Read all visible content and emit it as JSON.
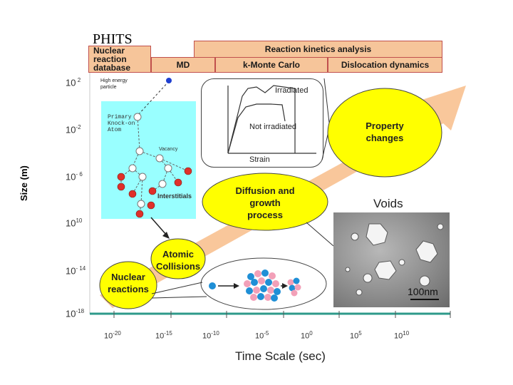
{
  "title": "PHITS",
  "bars": {
    "nuclear_db": "Nuclear\nreaction\ndatabase",
    "md": "MD",
    "reaction_kinetics": "Reaction kinetics analysis",
    "kmc": "k-Monte Carlo",
    "dislocation": "Dislocation dynamics"
  },
  "axes": {
    "ylabel": "Size (m)",
    "xlabel": "Time Scale (sec)",
    "yticks": [
      {
        "base": "10",
        "exp": " 2"
      },
      {
        "base": "10",
        "exp": "-2"
      },
      {
        "base": "10",
        "exp": "- 6"
      },
      {
        "base": "10",
        "exp": "10"
      },
      {
        "base": "10",
        "exp": "- 14"
      },
      {
        "base": "10",
        "exp": "-18"
      }
    ],
    "xticks": [
      {
        "base": "10",
        "exp": "-20"
      },
      {
        "base": "10",
        "exp": "-15"
      },
      {
        "base": "10",
        "exp": "-10"
      },
      {
        "base": "10",
        "exp": "-5"
      },
      {
        "base": "10",
        "exp": "0"
      },
      {
        "base": "10",
        "exp": "5"
      },
      {
        "base": "10",
        "exp": "10"
      }
    ]
  },
  "cascade": {
    "high_energy": "High energy\nparticle",
    "pka": "Primary\nKnock-on\nAtom",
    "vacancy": "Vacancy",
    "interstitials": "Interstitials"
  },
  "stress_strain": {
    "irradiated": "Irradiated",
    "not_irradiated": "Not irradiated",
    "strain": "Strain"
  },
  "ellipses": {
    "property": "Property\nchanges",
    "diffusion": "Diffusion and\ngrowth\nprocess",
    "atomic": "Atomic\nCollisions",
    "nuclear": "Nuclear\nreactions"
  },
  "micrograph": {
    "voids": "Voids",
    "scale": "100nm"
  },
  "colors": {
    "bar_fill": "#f6c59a",
    "bar_border": "#c0504d",
    "arrow": "#f9c79b",
    "ellipse": "#ffff00",
    "cascade_bg": "#99ffff",
    "axis_green": "#2e9a8a",
    "atom_red": "#e0302a",
    "atom_blue": "#1f8fd6",
    "atom_pink": "#f2a0b8"
  }
}
